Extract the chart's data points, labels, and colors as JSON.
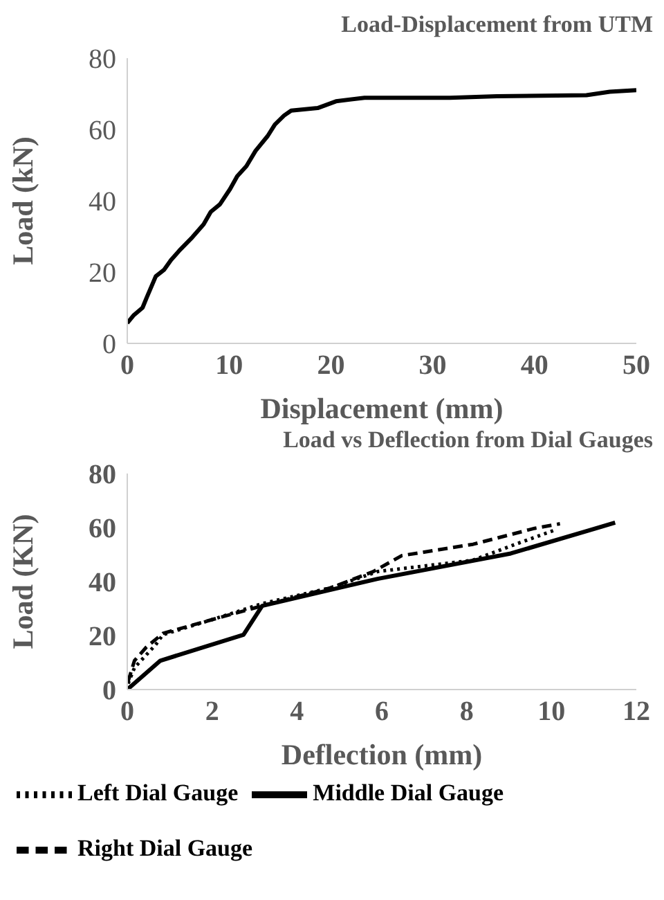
{
  "chart_data": [
    {
      "type": "line",
      "title": "Load-Displacement from UTM",
      "xlabel": "Displacement (mm)",
      "ylabel": "Load (kN)",
      "xlim": [
        0,
        50
      ],
      "xticks": [
        0,
        10,
        20,
        30,
        40,
        50
      ],
      "ylim": [
        0,
        80
      ],
      "yticks": [
        0,
        20,
        40,
        60,
        80
      ],
      "grid": false,
      "marker": "none",
      "legend": false,
      "series": [
        {
          "color": "#000000",
          "line_style": "solid",
          "x": [
            0,
            0.6,
            1.5,
            1.9,
            2.8,
            3.6,
            4.3,
            5.2,
            6.4,
            7.5,
            8.2,
            9.1,
            10.1,
            10.8,
            11.7,
            12.6,
            13.8,
            14.5,
            15.4,
            16.1,
            18.7,
            20.5,
            23.3,
            31.7,
            36.3,
            45.1,
            47.4,
            50
          ],
          "values": [
            5.7,
            7.8,
            10,
            12.8,
            18.8,
            20.6,
            23.4,
            26.3,
            29.8,
            33.4,
            36.9,
            39,
            43.3,
            46.9,
            49.7,
            54,
            58.2,
            61.4,
            63.9,
            65.3,
            66,
            67.9,
            68.9,
            68.9,
            69.3,
            69.6,
            70.6,
            71
          ]
        }
      ]
    },
    {
      "type": "line",
      "title": "Load vs Deflection from Dial Gauges",
      "xlabel": "Deflection (mm)",
      "ylabel": "Load (KN)",
      "xlim": [
        0,
        12
      ],
      "xticks": [
        0,
        2,
        4,
        6,
        8,
        10,
        12
      ],
      "ylim": [
        0,
        80
      ],
      "yticks": [
        0,
        20,
        40,
        60,
        80
      ],
      "grid": false,
      "marker": "none",
      "legend": "bottom",
      "series": [
        {
          "name": "Left Dial Gauge",
          "color": "#000000",
          "line_style": "dotted",
          "x": [
            0.02,
            0.17,
            0.67,
            0.84,
            2,
            3.18,
            4.8,
            5.9,
            8.15,
            9.15,
            10.05
          ],
          "values": [
            2.2,
            8.1,
            16.6,
            20.3,
            25.9,
            31.8,
            37.7,
            43.7,
            47.9,
            53.8,
            58.9
          ]
        },
        {
          "name": "Middle Dial Gauge",
          "color": "#000000",
          "line_style": "solid",
          "x": [
            0,
            0.78,
            2.74,
            3.18,
            5.9,
            9.04,
            11.5
          ],
          "values": [
            0,
            10.7,
            20.3,
            31,
            41,
            50.4,
            61.8
          ]
        },
        {
          "name": "Right Dial Gauge",
          "color": "#000000",
          "line_style": "dashed",
          "x": [
            0.02,
            0.17,
            0.45,
            0.84,
            2,
            3.18,
            4.8,
            5.8,
            6.47,
            8.15,
            9.6,
            10.2
          ],
          "values": [
            3,
            10.7,
            15.7,
            20.8,
            25.9,
            31,
            37.7,
            43.7,
            49.6,
            53.8,
            59.7,
            61.4
          ]
        }
      ]
    }
  ]
}
